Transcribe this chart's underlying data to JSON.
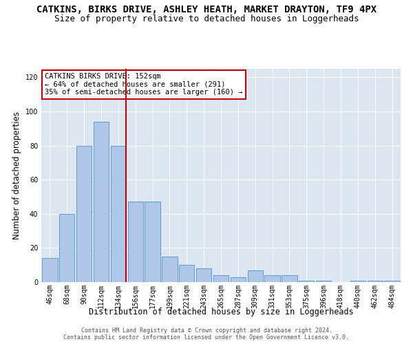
{
  "title": "CATKINS, BIRKS DRIVE, ASHLEY HEATH, MARKET DRAYTON, TF9 4PX",
  "subtitle": "Size of property relative to detached houses in Loggerheads",
  "xlabel": "Distribution of detached houses by size in Loggerheads",
  "ylabel": "Number of detached properties",
  "categories": [
    "46sqm",
    "68sqm",
    "90sqm",
    "112sqm",
    "134sqm",
    "156sqm",
    "177sqm",
    "199sqm",
    "221sqm",
    "243sqm",
    "265sqm",
    "287sqm",
    "309sqm",
    "331sqm",
    "353sqm",
    "375sqm",
    "396sqm",
    "418sqm",
    "440sqm",
    "462sqm",
    "484sqm"
  ],
  "values": [
    14,
    40,
    80,
    94,
    80,
    47,
    47,
    15,
    10,
    8,
    4,
    3,
    7,
    4,
    4,
    1,
    1,
    0,
    1,
    1,
    1
  ],
  "bar_color": "#aec6e8",
  "bar_edge_color": "#5b9bd5",
  "highlight_color": "#c00000",
  "annotation_text": "CATKINS BIRKS DRIVE: 152sqm\n← 64% of detached houses are smaller (291)\n35% of semi-detached houses are larger (160) →",
  "annotation_box_color": "#ffffff",
  "annotation_box_edge_color": "#c00000",
  "ylim": [
    0,
    125
  ],
  "yticks": [
    0,
    20,
    40,
    60,
    80,
    100,
    120
  ],
  "background_color": "#dce6f1",
  "footer_line1": "Contains HM Land Registry data © Crown copyright and database right 2024.",
  "footer_line2": "Contains public sector information licensed under the Open Government Licence v3.0.",
  "title_fontsize": 10,
  "subtitle_fontsize": 9,
  "xlabel_fontsize": 8.5,
  "ylabel_fontsize": 8.5,
  "tick_fontsize": 7,
  "annotation_fontsize": 7.5,
  "footer_fontsize": 6
}
